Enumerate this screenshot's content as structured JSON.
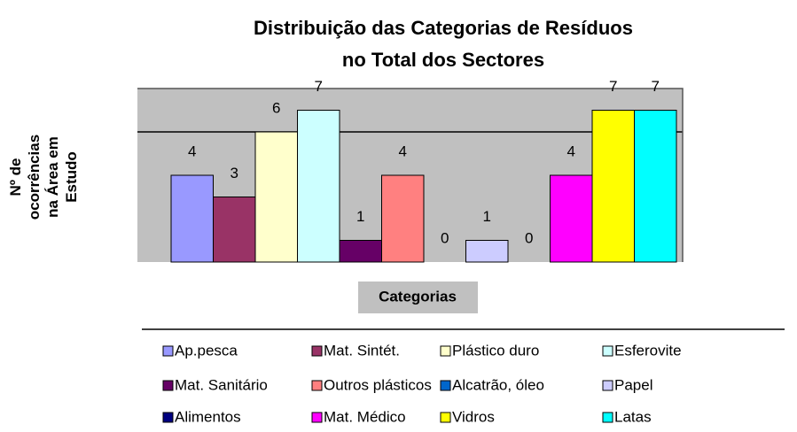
{
  "chart_data": {
    "type": "bar",
    "title": [
      "Distribuição das Categorias de Resíduos",
      "no Total  dos Sectores"
    ],
    "y_label": [
      "Nº de",
      "ocorrências",
      "na Área em",
      "Estudo"
    ],
    "x_label": "Categorias",
    "categories": [
      "Ap.pesca",
      "Mat. Sintét.",
      "Plástico duro",
      "Esferovite",
      "Mat. Sanitário",
      "Outros plásticos",
      "Alcatrão, óleo",
      "Papel",
      "Alimentos",
      "Mat. Médico",
      "Vidros",
      "Latas"
    ],
    "values": [
      4,
      3,
      6,
      7,
      1,
      4,
      0,
      1,
      0,
      4,
      7,
      7
    ],
    "colors": [
      "#9999ff",
      "#993366",
      "#ffffcc",
      "#ccffff",
      "#660066",
      "#ff8080",
      "#0066cc",
      "#ccccff",
      "#000080",
      "#ff00ff",
      "#ffff00",
      "#00ffff"
    ],
    "ylim": [
      0,
      8
    ],
    "grid_lines": [
      6
    ],
    "legend": "bottom"
  }
}
